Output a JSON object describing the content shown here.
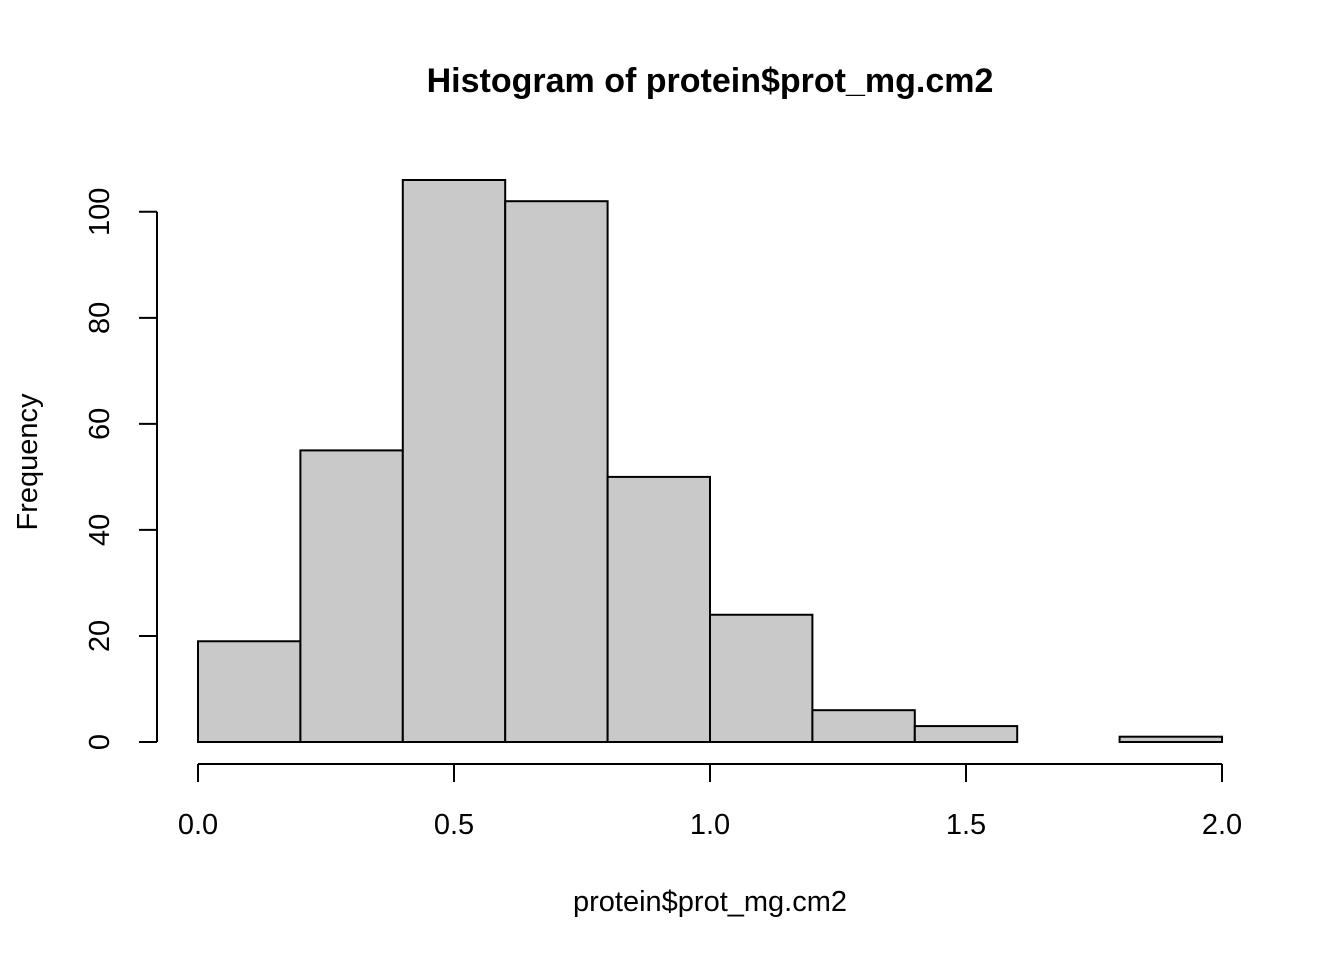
{
  "chart_data": {
    "type": "bar",
    "title": "Histogram of protein$prot_mg.cm2",
    "xlabel": "protein$prot_mg.cm2",
    "ylabel": "Frequency",
    "bins": [
      {
        "start": 0.0,
        "end": 0.2,
        "count": 19
      },
      {
        "start": 0.2,
        "end": 0.4,
        "count": 55
      },
      {
        "start": 0.4,
        "end": 0.6,
        "count": 106
      },
      {
        "start": 0.6,
        "end": 0.8,
        "count": 102
      },
      {
        "start": 0.8,
        "end": 1.0,
        "count": 50
      },
      {
        "start": 1.0,
        "end": 1.2,
        "count": 24
      },
      {
        "start": 1.2,
        "end": 1.4,
        "count": 6
      },
      {
        "start": 1.4,
        "end": 1.6,
        "count": 3
      },
      {
        "start": 1.6,
        "end": 1.8,
        "count": 0
      },
      {
        "start": 1.8,
        "end": 2.0,
        "count": 1
      }
    ],
    "xlim": [
      0.0,
      2.0
    ],
    "ylim": [
      0,
      106
    ],
    "x_ticks": [
      0.0,
      0.5,
      1.0,
      1.5,
      2.0
    ],
    "x_tick_labels": [
      "0.0",
      "0.5",
      "1.0",
      "1.5",
      "2.0"
    ],
    "y_ticks": [
      0,
      20,
      40,
      60,
      80,
      100
    ],
    "y_tick_labels": [
      "0",
      "20",
      "40",
      "60",
      "80",
      "100"
    ],
    "grid": false,
    "legend": "none",
    "colors": {
      "bar_fill": "#c9c9c9",
      "bar_stroke": "#000000",
      "axis": "#000000"
    }
  }
}
